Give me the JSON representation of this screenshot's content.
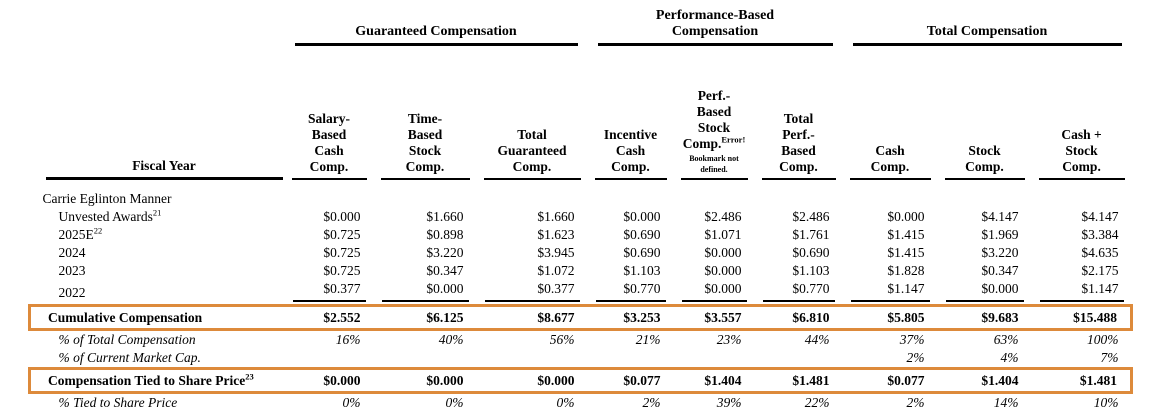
{
  "document": {
    "title": "Compensation Table"
  },
  "colors": {
    "box_border": "#DD8A3B",
    "rule": "#000000",
    "footer_rule": "#c4c4c4"
  },
  "header": {
    "fiscal_year_label": "Fiscal Year",
    "groups": [
      {
        "name": "guaranteed-compensation",
        "lines": [
          "Guaranteed Compensation"
        ],
        "span": 3
      },
      {
        "name": "performance-based-compensation",
        "lines": [
          "Performance-Based",
          "Compensation"
        ],
        "span": 3
      },
      {
        "name": "total-compensation",
        "lines": [
          "Total Compensation"
        ],
        "span": 3
      }
    ],
    "columns": [
      {
        "name": "salary-based-cash-comp",
        "lines": [
          "Salary-",
          "Based",
          "Cash",
          "Comp."
        ]
      },
      {
        "name": "time-based-stock-comp",
        "lines": [
          "Time-",
          "Based",
          "Stock",
          "Comp."
        ]
      },
      {
        "name": "total-guaranteed-comp",
        "lines": [
          "Total",
          "Guaranteed",
          "Comp."
        ]
      },
      {
        "name": "incentive-cash-comp",
        "lines": [
          "Incentive",
          "Cash",
          "Comp."
        ]
      },
      {
        "name": "perf-based-stock-comp",
        "lines": [
          "Perf.-",
          "Based",
          "Stock",
          "Comp."
        ],
        "error_sup": "Error!",
        "error_lines": [
          "Bookmark not",
          "defined."
        ]
      },
      {
        "name": "total-perf-based-comp",
        "lines": [
          "Total",
          "Perf.-",
          "Based",
          "Comp."
        ]
      },
      {
        "name": "cash-comp",
        "lines": [
          "Cash",
          "Comp."
        ]
      },
      {
        "name": "stock-comp",
        "lines": [
          "Stock",
          "Comp."
        ]
      },
      {
        "name": "cash-plus-stock-comp",
        "lines": [
          "Cash +",
          "Stock",
          "Comp."
        ]
      }
    ]
  },
  "rows": [
    {
      "type": "section",
      "label": "Carrie Eglinton Manner",
      "cells": [
        "",
        "",
        "",
        "",
        "",
        "",
        "",
        "",
        ""
      ]
    },
    {
      "type": "data",
      "label": "Unvested Awards",
      "sup": "21",
      "cells": [
        "$0.000",
        "$1.660",
        "$1.660",
        "$0.000",
        "$2.486",
        "$2.486",
        "$0.000",
        "$4.147",
        "$4.147"
      ]
    },
    {
      "type": "data",
      "label": "2025E",
      "sup": "22",
      "cells": [
        "$0.725",
        "$0.898",
        "$1.623",
        "$0.690",
        "$1.071",
        "$1.761",
        "$1.415",
        "$1.969",
        "$3.384"
      ]
    },
    {
      "type": "data",
      "label": "2024",
      "cells": [
        "$0.725",
        "$3.220",
        "$3.945",
        "$0.690",
        "$0.000",
        "$0.690",
        "$1.415",
        "$3.220",
        "$4.635"
      ]
    },
    {
      "type": "data",
      "label": "2023",
      "cells": [
        "$0.725",
        "$0.347",
        "$1.072",
        "$1.103",
        "$0.000",
        "$1.103",
        "$1.828",
        "$0.347",
        "$2.175"
      ]
    },
    {
      "type": "data",
      "label": "2022",
      "underline": true,
      "cells": [
        "$0.377",
        "$0.000",
        "$0.377",
        "$0.770",
        "$0.000",
        "$0.770",
        "$1.147",
        "$0.000",
        "$1.147"
      ]
    },
    {
      "type": "boxed",
      "label": "Cumulative Compensation",
      "cells": [
        "$2.552",
        "$6.125",
        "$8.677",
        "$3.253",
        "$3.557",
        "$6.810",
        "$5.805",
        "$9.683",
        "$15.488"
      ]
    },
    {
      "type": "pct",
      "label": "% of Total Compensation",
      "cells": [
        "16%",
        "40%",
        "56%",
        "21%",
        "23%",
        "44%",
        "37%",
        "63%",
        "100%"
      ]
    },
    {
      "type": "pct",
      "label": "% of Current Market Cap.",
      "cells": [
        "",
        "",
        "",
        "",
        "",
        "",
        "2%",
        "4%",
        "7%"
      ]
    },
    {
      "type": "boxed",
      "label": "Compensation Tied to Share Price",
      "sup": "23",
      "cells": [
        "$0.000",
        "$0.000",
        "$0.000",
        "$0.077",
        "$1.404",
        "$1.481",
        "$0.077",
        "$1.404",
        "$1.481"
      ]
    },
    {
      "type": "pct",
      "label": "% Tied to Share Price",
      "last": true,
      "cells": [
        "0%",
        "0%",
        "0%",
        "2%",
        "39%",
        "22%",
        "2%",
        "14%",
        "10%"
      ]
    }
  ]
}
